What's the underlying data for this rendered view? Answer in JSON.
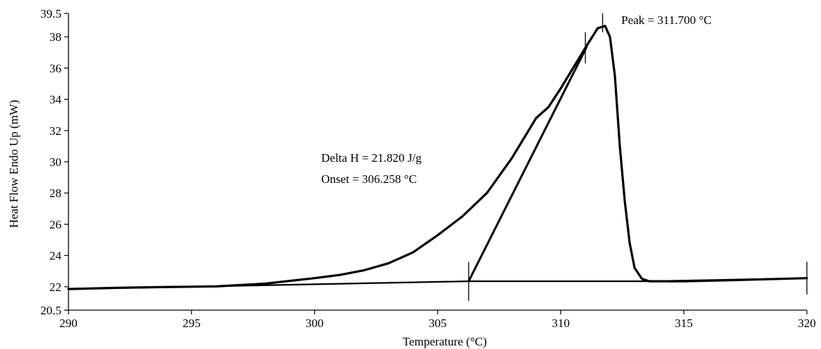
{
  "chart_data": {
    "type": "line",
    "title": "",
    "xlabel": "Temperature (°C)",
    "ylabel": "Heat Flow Endo Up (mW)",
    "xlim": [
      290,
      320
    ],
    "ylim": [
      20.5,
      39.5
    ],
    "x_ticks": [
      290,
      295,
      300,
      305,
      310,
      315,
      320
    ],
    "x_tick_labels": [
      "290",
      "295",
      "300",
      "305",
      "310",
      "315",
      "320"
    ],
    "y_ticks": [
      20.5,
      22,
      24,
      26,
      28,
      30,
      32,
      34,
      36,
      38,
      39.5
    ],
    "y_tick_labels": [
      "20.5",
      "22",
      "24",
      "26",
      "28",
      "30",
      "32",
      "34",
      "36",
      "38",
      "39.5"
    ],
    "grid": false,
    "series": [
      {
        "role": "heat-flow-curve",
        "points": [
          [
            290,
            21.85
          ],
          [
            292,
            21.93
          ],
          [
            294,
            21.98
          ],
          [
            296,
            22.02
          ],
          [
            298,
            22.2
          ],
          [
            300,
            22.55
          ],
          [
            301,
            22.75
          ],
          [
            302,
            23.05
          ],
          [
            303,
            23.5
          ],
          [
            304,
            24.2
          ],
          [
            305,
            25.3
          ],
          [
            306,
            26.5
          ],
          [
            307,
            28.0
          ],
          [
            308,
            30.2
          ],
          [
            309,
            32.8
          ],
          [
            309.5,
            33.5
          ],
          [
            310,
            34.7
          ],
          [
            310.5,
            36.0
          ],
          [
            311,
            37.3
          ],
          [
            311.5,
            38.55
          ],
          [
            311.8,
            38.7
          ],
          [
            312.0,
            38.0
          ],
          [
            312.2,
            35.5
          ],
          [
            312.4,
            31.0
          ],
          [
            312.6,
            27.5
          ],
          [
            312.8,
            24.8
          ],
          [
            313.0,
            23.2
          ],
          [
            313.3,
            22.5
          ],
          [
            313.6,
            22.35
          ],
          [
            315,
            22.35
          ],
          [
            317,
            22.42
          ],
          [
            320,
            22.55
          ]
        ]
      },
      {
        "role": "baseline",
        "points": [
          [
            290,
            21.85
          ],
          [
            306.258,
            22.35
          ],
          [
            313.6,
            22.35
          ],
          [
            320,
            22.55
          ]
        ]
      },
      {
        "role": "onset-tangent",
        "points": [
          [
            306.258,
            22.35
          ],
          [
            311.05,
            37.35
          ]
        ]
      }
    ],
    "markers": [
      {
        "x": 306.258,
        "y_from": 21.1,
        "y_to": 23.6
      },
      {
        "x": 311.0,
        "y_from": 36.3,
        "y_to": 38.3
      },
      {
        "x": 311.7,
        "y_from": 38.3,
        "y_to": 39.5
      },
      {
        "x": 320,
        "y_from": 21.5,
        "y_to": 23.6
      }
    ],
    "annotations": {
      "peak": "Peak = 311.700 °C",
      "delta_h": "Delta H = 21.820 J/g",
      "onset": "Onset = 306.258 °C"
    }
  }
}
